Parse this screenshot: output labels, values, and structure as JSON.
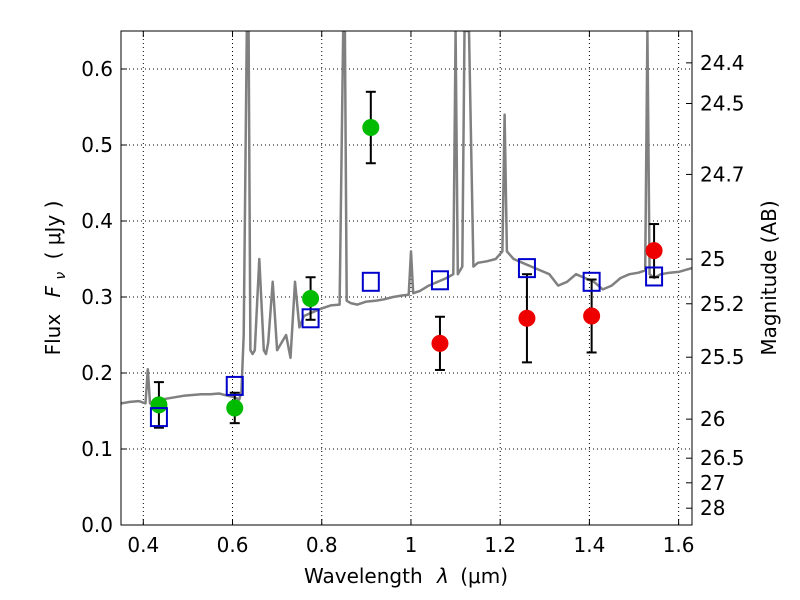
{
  "chart_data": {
    "type": "scatter",
    "xlabel_text": "Wavelength",
    "xlabel_symbol": "λ",
    "xlabel_unit": "(μm)",
    "ylabel_text": "Flux",
    "ylabel_symbol": "F",
    "ylabel_subscript": "ν",
    "ylabel_unit": "( μJy )",
    "y2label": "Magnitude (AB)",
    "xlim": [
      0.35,
      1.63
    ],
    "ylim": [
      0.0,
      0.65
    ],
    "xticks": [
      0.4,
      0.6,
      0.8,
      1.0,
      1.2,
      1.4,
      1.6
    ],
    "xtick_labels": [
      "0.4",
      "0.6",
      "0.8",
      "1",
      "1.2",
      "1.4",
      "1.6"
    ],
    "yticks": [
      0.0,
      0.1,
      0.2,
      0.3,
      0.4,
      0.5,
      0.6
    ],
    "ytick_labels": [
      "0.0",
      "0.1",
      "0.2",
      "0.3",
      "0.4",
      "0.5",
      "0.6"
    ],
    "y2ticks": [
      {
        "label": "24.4",
        "flux": 0.6081
      },
      {
        "label": "24.5",
        "flux": 0.5546
      },
      {
        "label": "24.7",
        "flux": 0.4613
      },
      {
        "label": "25",
        "flux": 0.3499
      },
      {
        "label": "25.2",
        "flux": 0.2911
      },
      {
        "label": "25.5",
        "flux": 0.2208
      },
      {
        "label": "26",
        "flux": 0.1393
      },
      {
        "label": "26.5",
        "flux": 0.0879
      },
      {
        "label": "27",
        "flux": 0.0555
      },
      {
        "label": "28",
        "flux": 0.0221
      }
    ],
    "grid": true,
    "series": [
      {
        "kind": "spectrum",
        "color": "#808080",
        "x": [
          0.35,
          0.37,
          0.39,
          0.405,
          0.41,
          0.415,
          0.43,
          0.45,
          0.47,
          0.49,
          0.51,
          0.53,
          0.55,
          0.57,
          0.59,
          0.605,
          0.615,
          0.62,
          0.625,
          0.632,
          0.636,
          0.64,
          0.645,
          0.65,
          0.66,
          0.67,
          0.675,
          0.68,
          0.69,
          0.7,
          0.72,
          0.73,
          0.74,
          0.75,
          0.76,
          0.78,
          0.8,
          0.82,
          0.84,
          0.848,
          0.852,
          0.856,
          0.865,
          0.88,
          0.9,
          0.92,
          0.94,
          0.96,
          0.98,
          0.995,
          1.0,
          1.005,
          1.02,
          1.04,
          1.06,
          1.08,
          1.095,
          1.1,
          1.105,
          1.115,
          1.12,
          1.13,
          1.14,
          1.15,
          1.17,
          1.19,
          1.205,
          1.21,
          1.215,
          1.23,
          1.25,
          1.27,
          1.29,
          1.31,
          1.33,
          1.35,
          1.37,
          1.39,
          1.41,
          1.43,
          1.45,
          1.47,
          1.49,
          1.51,
          1.525,
          1.53,
          1.535,
          1.545,
          1.56,
          1.58,
          1.6,
          1.63
        ],
        "y": [
          0.16,
          0.162,
          0.163,
          0.16,
          0.205,
          0.16,
          0.164,
          0.166,
          0.168,
          0.17,
          0.171,
          0.172,
          0.172,
          0.173,
          0.17,
          0.168,
          0.165,
          0.175,
          0.25,
          0.65,
          0.65,
          0.23,
          0.225,
          0.23,
          0.35,
          0.23,
          0.225,
          0.24,
          0.32,
          0.23,
          0.25,
          0.22,
          0.32,
          0.26,
          0.275,
          0.28,
          0.285,
          0.289,
          0.29,
          0.65,
          0.65,
          0.295,
          0.292,
          0.29,
          0.294,
          0.295,
          0.297,
          0.3,
          0.302,
          0.303,
          0.36,
          0.305,
          0.308,
          0.315,
          0.32,
          0.325,
          0.33,
          0.65,
          0.33,
          0.34,
          0.65,
          0.65,
          0.34,
          0.345,
          0.347,
          0.35,
          0.36,
          0.54,
          0.36,
          0.35,
          0.345,
          0.34,
          0.335,
          0.33,
          0.315,
          0.32,
          0.33,
          0.325,
          0.32,
          0.31,
          0.315,
          0.325,
          0.33,
          0.332,
          0.335,
          0.65,
          0.33,
          0.325,
          0.33,
          0.332,
          0.333,
          0.338
        ]
      },
      {
        "kind": "points",
        "marker": "circle",
        "color": "#00bb00",
        "x": [
          0.435,
          0.605,
          0.775,
          0.91
        ],
        "y": [
          0.158,
          0.154,
          0.298,
          0.523
        ],
        "err": [
          0.03,
          0.02,
          0.028,
          0.047
        ]
      },
      {
        "kind": "points",
        "marker": "circle",
        "color": "#ee0000",
        "x": [
          1.065,
          1.26,
          1.405,
          1.545
        ],
        "y": [
          0.239,
          0.272,
          0.275,
          0.361
        ],
        "err": [
          0.035,
          0.058,
          0.048,
          0.035
        ]
      },
      {
        "kind": "points",
        "marker": "open-square",
        "color": "#0000cc",
        "x": [
          0.435,
          0.605,
          0.775,
          0.91,
          1.065,
          1.26,
          1.405,
          1.545
        ],
        "y": [
          0.142,
          0.183,
          0.272,
          0.32,
          0.322,
          0.338,
          0.32,
          0.327
        ]
      }
    ]
  }
}
